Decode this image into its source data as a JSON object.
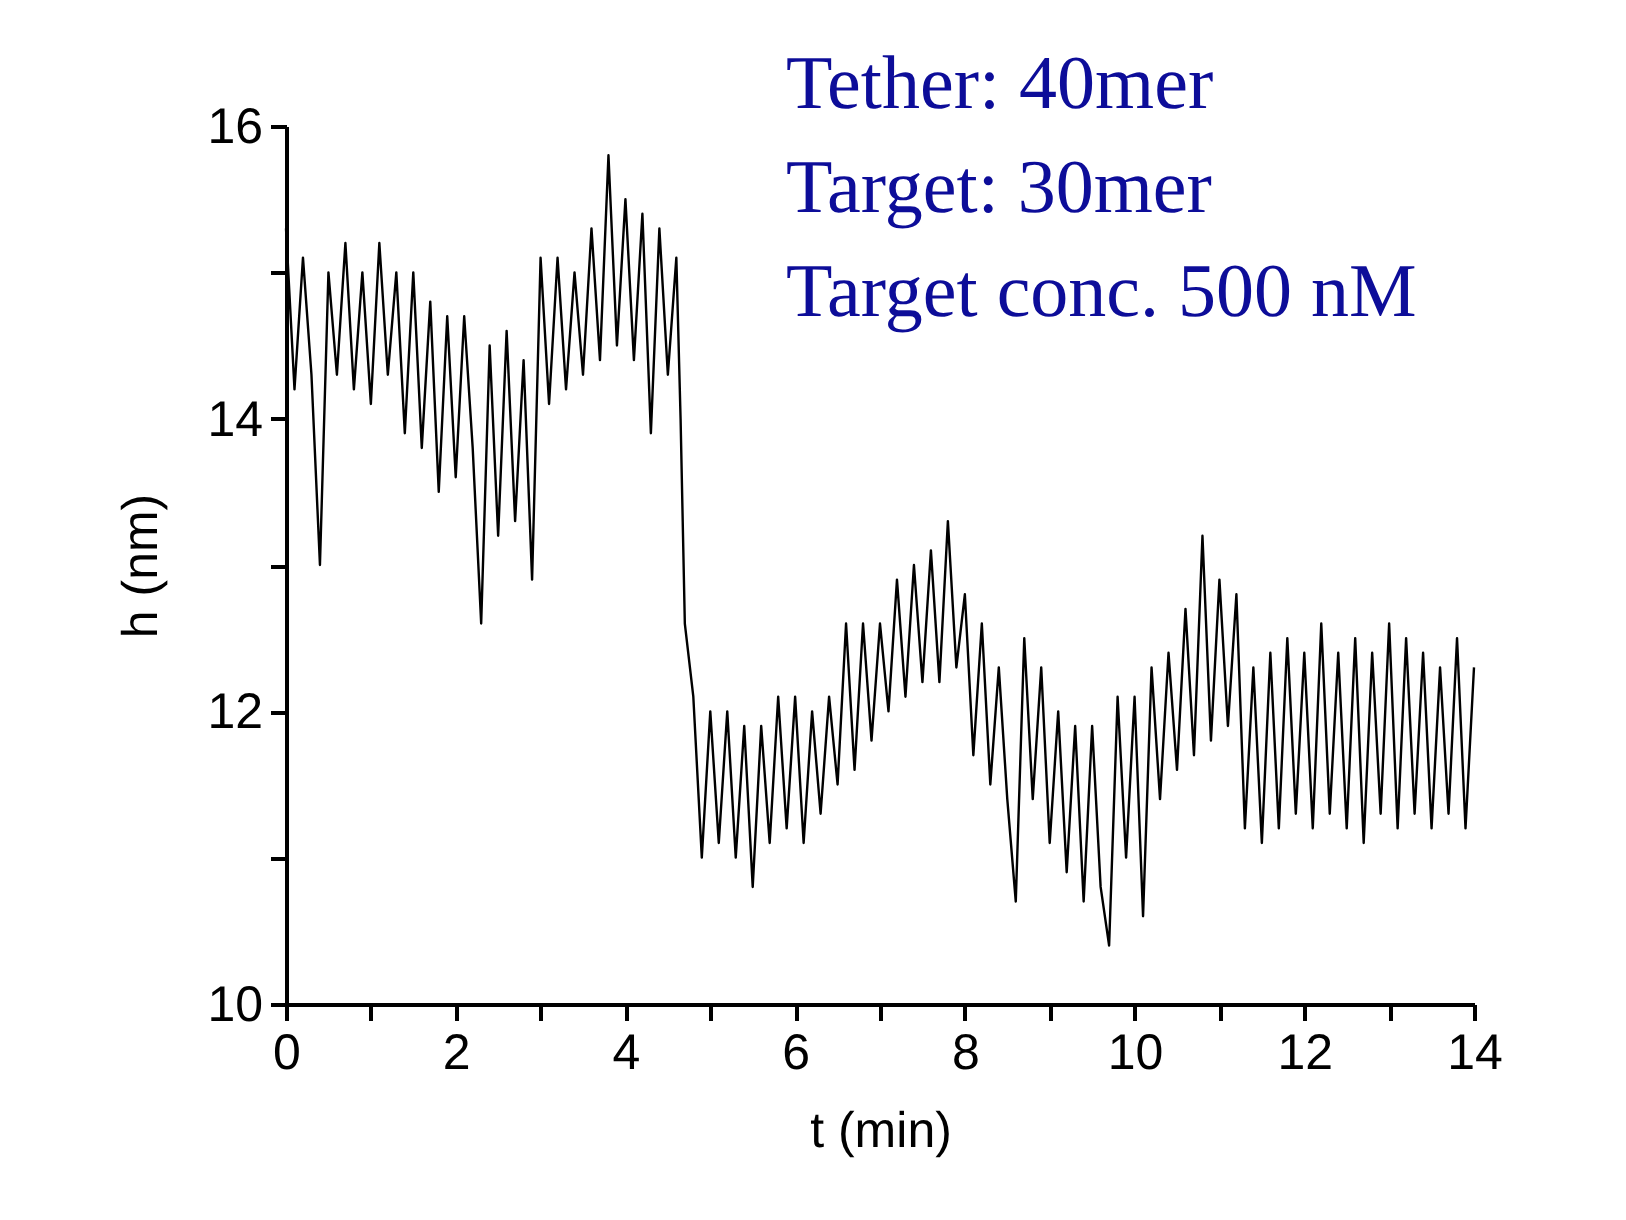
{
  "chart_data": {
    "type": "line",
    "xlabel": "t (min)",
    "ylabel": "h (nm)",
    "annotations": [
      "Tether: 40mer",
      "Target: 30mer",
      "Target conc. 500 nM"
    ],
    "xlim": [
      0,
      14
    ],
    "ylim": [
      10,
      16
    ],
    "xticks": [
      0,
      {
        "value": 1,
        "label": null
      },
      2,
      {
        "value": 3,
        "label": null
      },
      4,
      {
        "value": 5,
        "label": null
      },
      6,
      {
        "value": 7,
        "label": null
      },
      8,
      {
        "value": 9,
        "label": null
      },
      10,
      {
        "value": 11,
        "label": null
      },
      12,
      {
        "value": 13,
        "label": null
      },
      14
    ],
    "yticks": [
      10,
      {
        "value": 11,
        "label": null
      },
      12,
      {
        "value": 13,
        "label": null
      },
      14,
      {
        "value": 15,
        "label": null
      },
      16
    ],
    "grid": false,
    "marker": "none",
    "line_style": "solid",
    "series": [
      {
        "color": "#000000",
        "x": [
          0.0,
          0.1,
          0.2,
          0.3,
          0.4,
          0.5,
          0.6,
          0.7,
          0.8,
          0.9,
          1.0,
          1.1,
          1.2,
          1.3,
          1.4,
          1.5,
          1.6,
          1.7,
          1.8,
          1.9,
          2.0,
          2.1,
          2.2,
          2.3,
          2.4,
          2.5,
          2.6,
          2.7,
          2.8,
          2.9,
          3.0,
          3.1,
          3.2,
          3.3,
          3.4,
          3.5,
          3.6,
          3.7,
          3.8,
          3.9,
          4.0,
          4.1,
          4.2,
          4.3,
          4.4,
          4.5,
          4.6,
          4.65,
          4.7,
          4.8,
          4.9,
          5.0,
          5.1,
          5.2,
          5.3,
          5.4,
          5.5,
          5.6,
          5.7,
          5.8,
          5.9,
          6.0,
          6.1,
          6.2,
          6.3,
          6.4,
          6.5,
          6.6,
          6.7,
          6.8,
          6.9,
          7.0,
          7.1,
          7.2,
          7.3,
          7.4,
          7.5,
          7.6,
          7.7,
          7.8,
          7.9,
          8.0,
          8.1,
          8.2,
          8.3,
          8.4,
          8.5,
          8.6,
          8.7,
          8.8,
          8.9,
          9.0,
          9.1,
          9.2,
          9.3,
          9.4,
          9.5,
          9.6,
          9.7,
          9.8,
          9.9,
          10.0,
          10.1,
          10.2,
          10.3,
          10.4,
          10.5,
          10.6,
          10.7,
          10.8,
          10.9,
          11.0,
          11.1,
          11.2,
          11.3,
          11.4,
          11.5,
          11.6,
          11.7,
          11.8,
          11.9,
          12.0,
          12.1,
          12.2,
          12.3,
          12.4,
          12.5,
          12.6,
          12.7,
          12.8,
          12.9,
          13.0,
          13.1,
          13.2,
          13.3,
          13.4,
          13.5,
          13.6,
          13.7,
          13.8,
          13.9,
          14.0
        ],
        "values": [
          15.3,
          14.2,
          15.1,
          14.3,
          13.0,
          15.0,
          14.3,
          15.2,
          14.2,
          15.0,
          14.1,
          15.2,
          14.3,
          15.0,
          13.9,
          15.0,
          13.8,
          14.8,
          13.5,
          14.7,
          13.6,
          14.7,
          13.8,
          12.6,
          14.5,
          13.2,
          14.6,
          13.3,
          14.4,
          12.9,
          15.1,
          14.1,
          15.1,
          14.2,
          15.0,
          14.3,
          15.3,
          14.4,
          15.8,
          14.5,
          15.5,
          14.4,
          15.4,
          13.9,
          15.3,
          14.3,
          15.1,
          14.0,
          12.6,
          12.1,
          11.0,
          12.0,
          11.1,
          12.0,
          11.0,
          11.9,
          10.8,
          11.9,
          11.1,
          12.1,
          11.2,
          12.1,
          11.1,
          12.0,
          11.3,
          12.1,
          11.5,
          12.6,
          11.6,
          12.6,
          11.8,
          12.6,
          12.0,
          12.9,
          12.1,
          13.0,
          12.2,
          13.1,
          12.2,
          13.3,
          12.3,
          12.8,
          11.7,
          12.6,
          11.5,
          12.3,
          11.4,
          10.7,
          12.5,
          11.4,
          12.3,
          11.1,
          12.0,
          10.9,
          11.9,
          10.7,
          11.9,
          10.8,
          10.4,
          12.1,
          11.0,
          12.1,
          10.6,
          12.3,
          11.4,
          12.4,
          11.6,
          12.7,
          11.7,
          13.2,
          11.8,
          12.9,
          11.9,
          12.8,
          11.2,
          12.3,
          11.1,
          12.4,
          11.2,
          12.5,
          11.3,
          12.4,
          11.2,
          12.6,
          11.3,
          12.4,
          11.2,
          12.5,
          11.1,
          12.4,
          11.3,
          12.6,
          11.2,
          12.5,
          11.3,
          12.4,
          11.2,
          12.3,
          11.3,
          12.5,
          11.2,
          12.3
        ]
      }
    ]
  }
}
